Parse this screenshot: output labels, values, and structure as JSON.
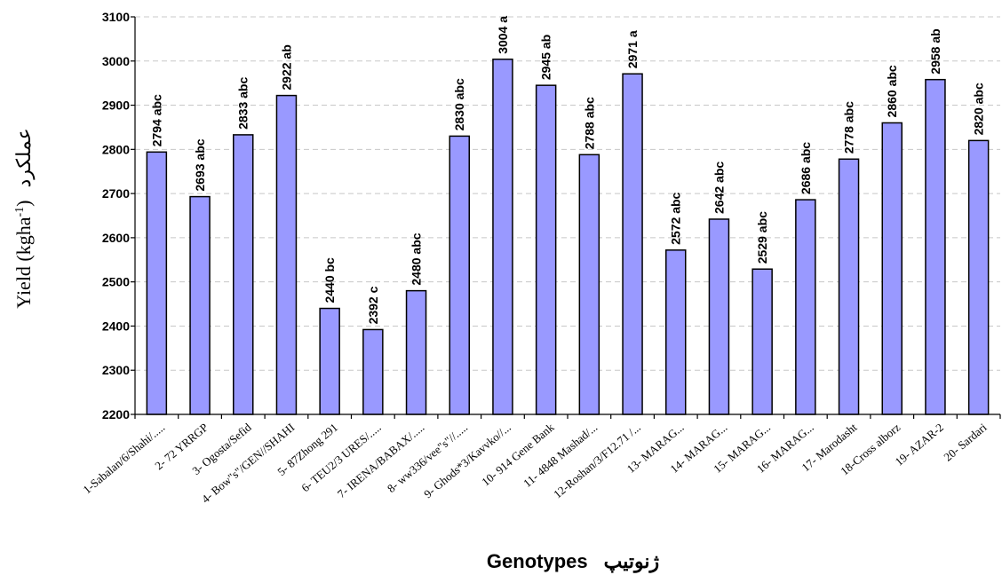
{
  "chart_data": {
    "type": "bar",
    "title": "",
    "xlabel": "Genotypes",
    "xlabel_fa": "ژنوتیپ",
    "ylabel": "Yield (kgha",
    "ylabel_sup": "-1",
    "ylabel_close": ")",
    "ylabel_fa": "عملکرد",
    "ylim": [
      2200,
      3100
    ],
    "yticks": [
      "2200",
      "2300",
      "2400",
      "2500",
      "2600",
      "2700",
      "2800",
      "2900",
      "3000",
      "3100"
    ],
    "grid": true,
    "bar_color": "#9999ff",
    "categories": [
      "1-Sabalan/6/Shahi/.....",
      "2- 72 YRRGP",
      "3- Ogosta/Sefid",
      "4- Bow\"s\"/GEN//SHAHI",
      "5- 87Zhong 291",
      "6- TEU2/3 URES/.....",
      "7- IRENA/BABAX/.....",
      "8- ww336/vee\"s\"//.....",
      "9- Ghods*3/Kavvko//...",
      "10- 914 Gene Bank",
      "11- 4848 Mashad/...",
      "12-Roshan/3/F12.71 /...",
      "13- MARAG...",
      "14- MARAG...",
      "15- MARAG...",
      "16- MARAG...",
      "17- Marodasht",
      "18-Cross alborz",
      "19- AZAR-2",
      "20- Sardari"
    ],
    "values": [
      2794,
      2693,
      2833,
      2922,
      2440,
      2392,
      2480,
      2830,
      3004,
      2945,
      2788,
      2971,
      2572,
      2642,
      2529,
      2686,
      2778,
      2860,
      2958,
      2820
    ],
    "data_labels": [
      "2794 abc",
      "2693 abc",
      "2833 abc",
      "2922 ab",
      "2440 bc",
      "2392 c",
      "2480 abc",
      "2830 abc",
      "3004 a",
      "2945 ab",
      "2788 abc",
      "2971 a",
      "2572 abc",
      "2642 abc",
      "2529 abc",
      "2686 abc",
      "2778 abc",
      "2860 abc",
      "2958 ab",
      "2820 abc"
    ]
  }
}
